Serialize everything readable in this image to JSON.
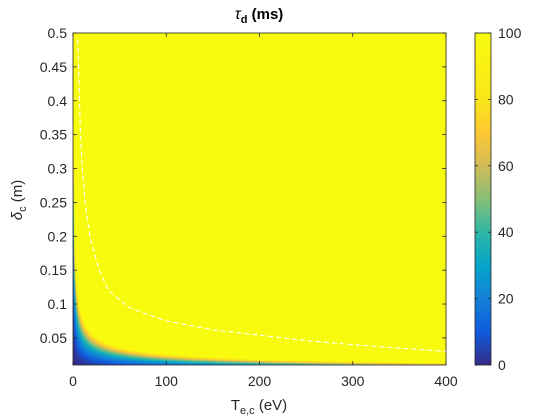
{
  "chart_data": {
    "type": "heatmap",
    "title": {
      "symbol": "τ",
      "subscript": "d",
      "rest": " (ms)"
    },
    "xlabel": {
      "main": "T",
      "subscript": "e,c",
      "rest": " (eV)"
    },
    "ylabel": {
      "main": "δ",
      "subscript": "c",
      "rest": " (m)"
    },
    "xlim": [
      0,
      400
    ],
    "ylim": [
      0.01,
      0.5
    ],
    "x_ticks": [
      "0",
      "100",
      "200",
      "300",
      "400"
    ],
    "x_tick_values": [
      0,
      100,
      200,
      300,
      400
    ],
    "y_ticks": [
      "0.05",
      "0.1",
      "0.15",
      "0.2",
      "0.25",
      "0.3",
      "0.35",
      "0.4",
      "0.45",
      "0.5"
    ],
    "y_tick_values": [
      0.05,
      0.1,
      0.15,
      0.2,
      0.25,
      0.3,
      0.35,
      0.4,
      0.45,
      0.5
    ],
    "colorbar": {
      "range": [
        0,
        100
      ],
      "ticks": [
        "0",
        "20",
        "40",
        "60",
        "80",
        "100"
      ],
      "tick_values": [
        0,
        20,
        40,
        60,
        80,
        100
      ],
      "colormap": "parula"
    },
    "field_model": "tau_d ≈ 1.45 * T_e,c * delta_c^2, saturating at 100",
    "contour_line": {
      "style": "dashed",
      "color": "#ffffff",
      "points": [
        {
          "x": 5,
          "y": 0.49
        },
        {
          "x": 6,
          "y": 0.45
        },
        {
          "x": 7,
          "y": 0.4
        },
        {
          "x": 8,
          "y": 0.35
        },
        {
          "x": 10,
          "y": 0.3
        },
        {
          "x": 13,
          "y": 0.25
        },
        {
          "x": 18,
          "y": 0.2
        },
        {
          "x": 28,
          "y": 0.15
        },
        {
          "x": 38,
          "y": 0.12
        },
        {
          "x": 60,
          "y": 0.095
        },
        {
          "x": 100,
          "y": 0.075
        },
        {
          "x": 150,
          "y": 0.062
        },
        {
          "x": 200,
          "y": 0.054
        },
        {
          "x": 250,
          "y": 0.046
        },
        {
          "x": 300,
          "y": 0.04
        },
        {
          "x": 350,
          "y": 0.035
        },
        {
          "x": 400,
          "y": 0.03
        }
      ]
    }
  }
}
